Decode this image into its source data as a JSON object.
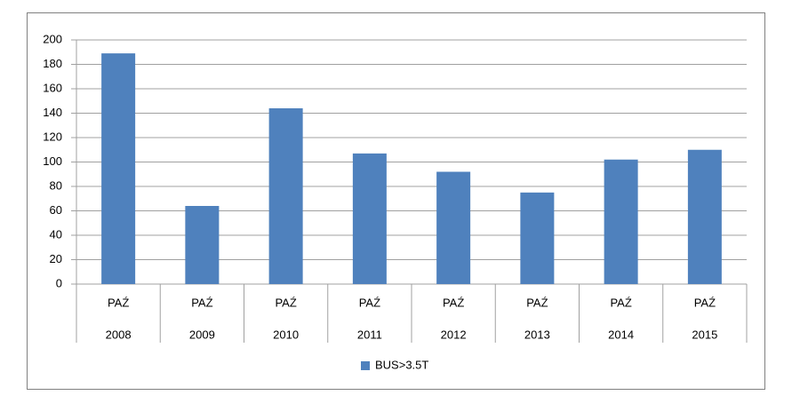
{
  "chart_data": {
    "type": "bar",
    "months": [
      "PAŹ",
      "PAŹ",
      "PAŹ",
      "PAŹ",
      "PAŹ",
      "PAŹ",
      "PAŹ",
      "PAŹ"
    ],
    "categories": [
      "2008",
      "2009",
      "2010",
      "2011",
      "2012",
      "2013",
      "2014",
      "2015"
    ],
    "series": [
      {
        "name": "BUS>3.5T",
        "color": "#4f81bd",
        "values": [
          189,
          64,
          144,
          107,
          92,
          75,
          102,
          110
        ]
      }
    ],
    "ylim": [
      0,
      200
    ],
    "yticks": [
      0,
      20,
      40,
      60,
      80,
      100,
      120,
      140,
      160,
      180,
      200
    ],
    "grid": true,
    "legend": "bottom"
  }
}
